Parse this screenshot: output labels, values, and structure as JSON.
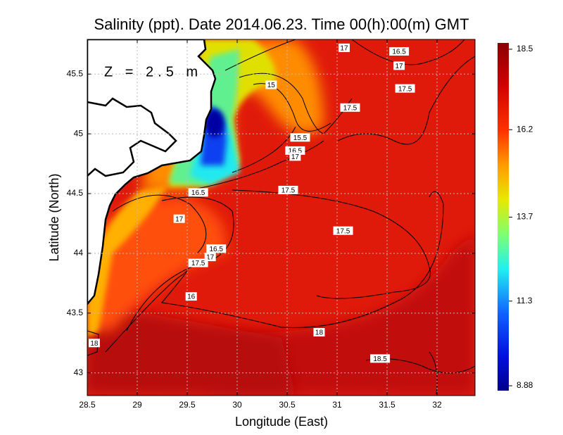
{
  "chart_data": {
    "type": "map",
    "title": "Salinity (ppt). Date 2014.06.23. Time 00(h):00(m) GMT",
    "annotation": "Z = 2.5 m",
    "x_label": "Longitude (East)",
    "y_label": "Latitude (North)",
    "xlim": [
      28.5,
      32.38
    ],
    "ylim": [
      42.81,
      45.79
    ],
    "xticks": [
      28.5,
      29,
      29.5,
      30,
      30.5,
      31,
      31.5,
      32
    ],
    "yticks": [
      43,
      43.5,
      44,
      44.5,
      45,
      45.5
    ],
    "grid": true,
    "colorbar": {
      "lim": [
        8.74,
        18.68
      ],
      "ticks": [
        8.88,
        11.3,
        13.7,
        16.2,
        18.5
      ]
    },
    "contour_labels": [
      {
        "value": 17,
        "lon": 31.07,
        "lat": 45.72
      },
      {
        "value": 16.5,
        "lon": 31.62,
        "lat": 45.69
      },
      {
        "value": 17,
        "lon": 31.62,
        "lat": 45.57
      },
      {
        "value": 17.5,
        "lon": 31.68,
        "lat": 45.38
      },
      {
        "value": 15,
        "lon": 30.34,
        "lat": 45.41
      },
      {
        "value": 17.5,
        "lon": 31.13,
        "lat": 45.22
      },
      {
        "value": 15.5,
        "lon": 30.63,
        "lat": 44.97
      },
      {
        "value": 16.5,
        "lon": 30.58,
        "lat": 44.86
      },
      {
        "value": 17,
        "lon": 30.58,
        "lat": 44.81
      },
      {
        "value": 17.5,
        "lon": 30.51,
        "lat": 44.53
      },
      {
        "value": 16.5,
        "lon": 29.61,
        "lat": 44.51
      },
      {
        "value": 17,
        "lon": 29.42,
        "lat": 44.29
      },
      {
        "value": 17.5,
        "lon": 31.06,
        "lat": 44.19
      },
      {
        "value": 16.5,
        "lon": 29.79,
        "lat": 44.04
      },
      {
        "value": 17,
        "lon": 29.73,
        "lat": 43.97
      },
      {
        "value": 17.5,
        "lon": 29.61,
        "lat": 43.92
      },
      {
        "value": 16,
        "lon": 29.54,
        "lat": 43.64
      },
      {
        "value": 18,
        "lon": 30.82,
        "lat": 43.34
      },
      {
        "value": 18.5,
        "lon": 31.43,
        "lat": 43.12
      },
      {
        "value": 18,
        "lon": 28.57,
        "lat": 43.25
      }
    ]
  }
}
